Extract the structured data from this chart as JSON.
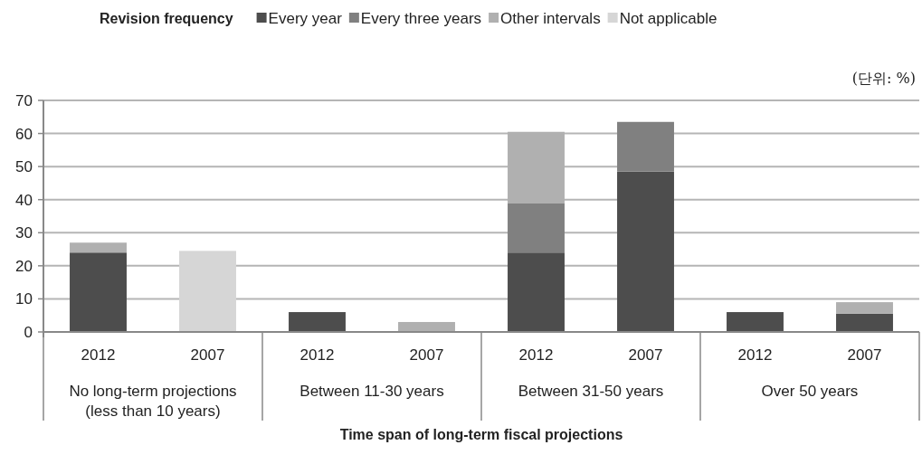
{
  "chart_data": {
    "type": "bar",
    "stacked": true,
    "xlabel": "Time span of long-term fiscal projections",
    "legend_title": "Revision frequency",
    "categories": [
      "2012",
      "2007",
      "2012",
      "2007",
      "2012",
      "2007",
      "2012",
      "2007"
    ],
    "series": [
      {
        "name": "Every year",
        "color": "#4d4d4d",
        "values": [
          24,
          null,
          6,
          null,
          24,
          48.5,
          6,
          5.5
        ]
      },
      {
        "name": "Every three years",
        "color": "#808080",
        "values": [
          null,
          null,
          null,
          null,
          15,
          15,
          null,
          null
        ]
      },
      {
        "name": "Other intervals",
        "color": "#b0b0b0",
        "values": [
          3,
          null,
          null,
          3,
          21.5,
          null,
          null,
          3.5
        ]
      },
      {
        "name": "Not applicable",
        "color": "#d6d6d6",
        "values": [
          null,
          24.5,
          null,
          null,
          null,
          null,
          null,
          null
        ]
      }
    ],
    "annotations": [
      "No long-term projections\n(less than 10 years)",
      "Between 11-30 years",
      "Between 31-50 years",
      "Over 50 years",
      "(단위: %)"
    ],
    "ylim": [
      0,
      70
    ],
    "yticks": [
      0,
      10,
      20,
      30,
      40,
      50,
      60,
      70
    ],
    "grid": "y",
    "legend": "top"
  }
}
